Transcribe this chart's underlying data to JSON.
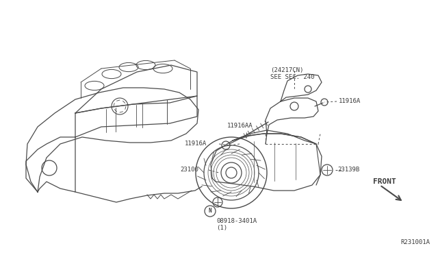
{
  "bg_color": "#ffffff",
  "line_color": "#4a4a4a",
  "text_color": "#3a3a3a",
  "ref_code": "R231001A",
  "fig_w": 6.4,
  "fig_h": 3.72,
  "dpi": 100,
  "labels": {
    "24217CN": "(24217CN)\nSEE SEC. 240",
    "11916A_left": "11916A",
    "11916A_right": "11916A",
    "11916AA": "11916AA",
    "23100": "23100",
    "23139B": "23139B",
    "bolt": "08918-3401A\n(1)",
    "front": "FRONT",
    "N": "N"
  }
}
